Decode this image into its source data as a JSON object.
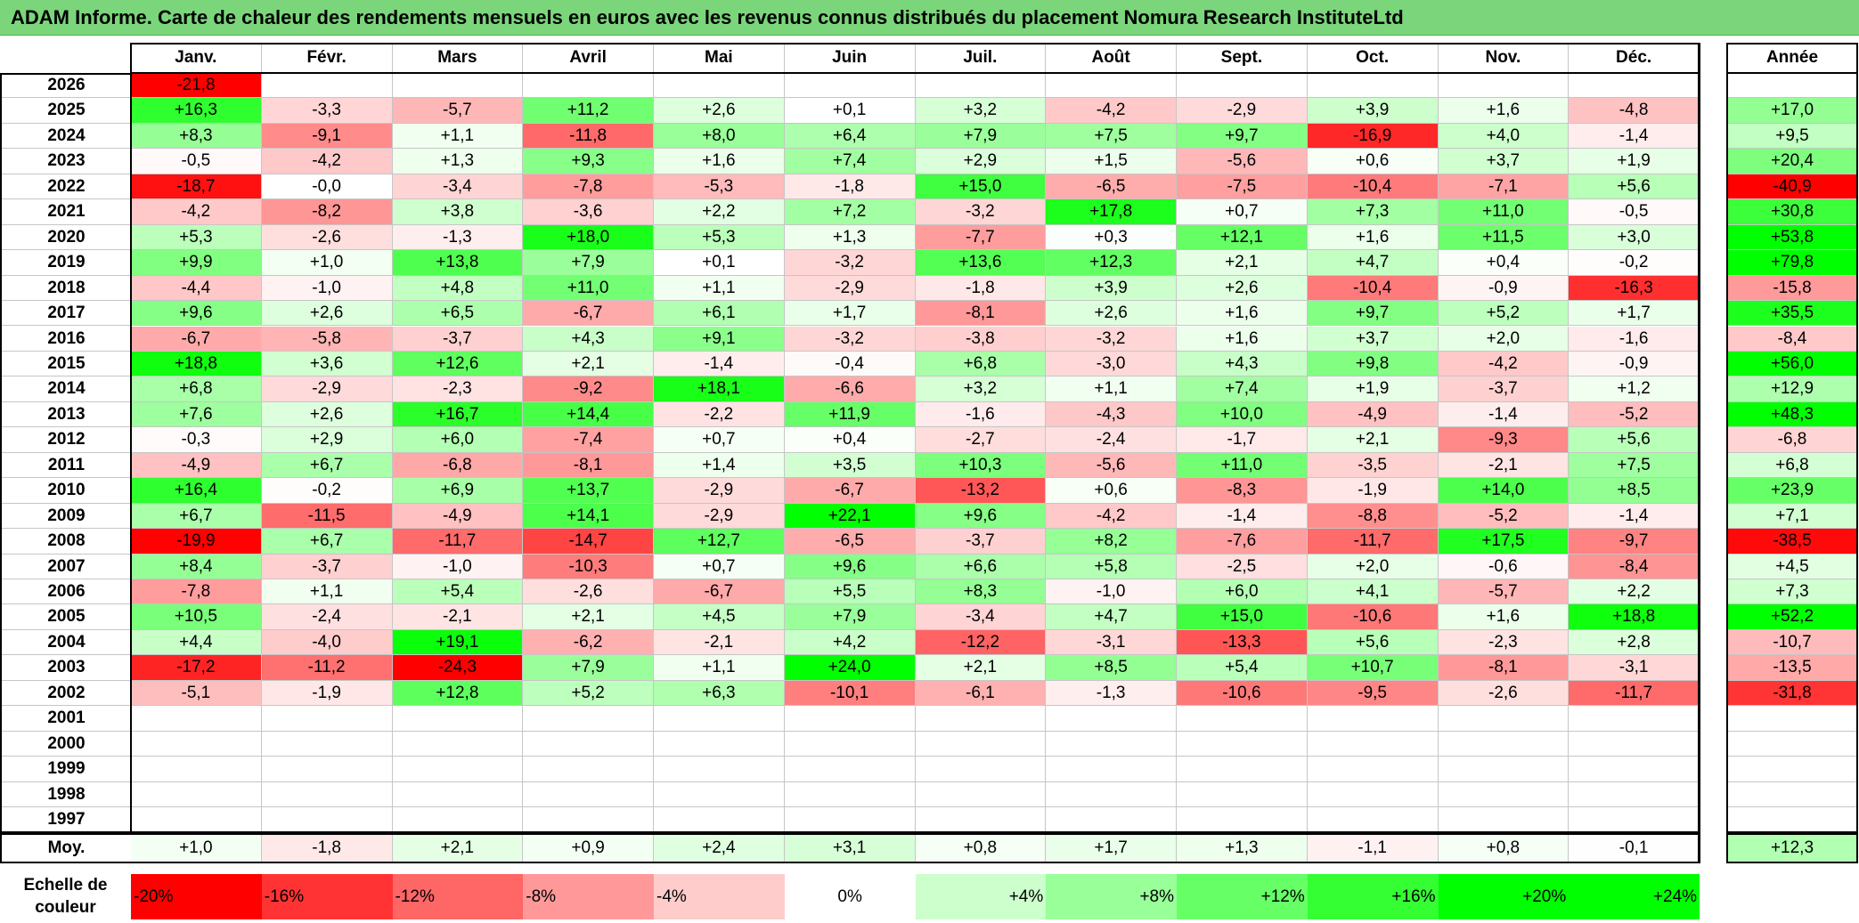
{
  "title": "ADAM Informe. Carte de chaleur des rendements mensuels en euros avec les revenus connus distribués du placement Nomura Research InstituteLtd",
  "chart_data": {
    "type": "heatmap",
    "columns": [
      "Janv.",
      "Févr.",
      "Mars",
      "Avril",
      "Mai",
      "Juin",
      "Juil.",
      "Août",
      "Sept.",
      "Oct.",
      "Nov.",
      "Déc."
    ],
    "year_column": "Année",
    "rows": [
      {
        "year": "2026",
        "values": [
          "-21,8",
          "",
          "",
          "",
          "",
          "",
          "",
          "",
          "",
          "",
          "",
          ""
        ],
        "annual": ""
      },
      {
        "year": "2025",
        "values": [
          "+16,3",
          "-3,3",
          "-5,7",
          "+11,2",
          "+2,6",
          "+0,1",
          "+3,2",
          "-4,2",
          "-2,9",
          "+3,9",
          "+1,6",
          "-4,8"
        ],
        "annual": "+17,0"
      },
      {
        "year": "2024",
        "values": [
          "+8,3",
          "-9,1",
          "+1,1",
          "-11,8",
          "+8,0",
          "+6,4",
          "+7,9",
          "+7,5",
          "+9,7",
          "-16,9",
          "+4,0",
          "-1,4"
        ],
        "annual": "+9,5"
      },
      {
        "year": "2023",
        "values": [
          "-0,5",
          "-4,2",
          "+1,3",
          "+9,3",
          "+1,6",
          "+7,4",
          "+2,9",
          "+1,5",
          "-5,6",
          "+0,6",
          "+3,7",
          "+1,9"
        ],
        "annual": "+20,4"
      },
      {
        "year": "2022",
        "values": [
          "-18,7",
          "-0,0",
          "-3,4",
          "-7,8",
          "-5,3",
          "-1,8",
          "+15,0",
          "-6,5",
          "-7,5",
          "-10,4",
          "-7,1",
          "+5,6"
        ],
        "annual": "-40,9"
      },
      {
        "year": "2021",
        "values": [
          "-4,2",
          "-8,2",
          "+3,8",
          "-3,6",
          "+2,2",
          "+7,2",
          "-3,2",
          "+17,8",
          "+0,7",
          "+7,3",
          "+11,0",
          "-0,5"
        ],
        "annual": "+30,8"
      },
      {
        "year": "2020",
        "values": [
          "+5,3",
          "-2,6",
          "-1,3",
          "+18,0",
          "+5,3",
          "+1,3",
          "-7,7",
          "+0,3",
          "+12,1",
          "+1,6",
          "+11,5",
          "+3,0"
        ],
        "annual": "+53,8"
      },
      {
        "year": "2019",
        "values": [
          "+9,9",
          "+1,0",
          "+13,8",
          "+7,9",
          "+0,1",
          "-3,2",
          "+13,6",
          "+12,3",
          "+2,1",
          "+4,7",
          "+0,4",
          "-0,2"
        ],
        "annual": "+79,8"
      },
      {
        "year": "2018",
        "values": [
          "-4,4",
          "-1,0",
          "+4,8",
          "+11,0",
          "+1,1",
          "-2,9",
          "-1,8",
          "+3,9",
          "+2,6",
          "-10,4",
          "-0,9",
          "-16,3"
        ],
        "annual": "-15,8"
      },
      {
        "year": "2017",
        "values": [
          "+9,6",
          "+2,6",
          "+6,5",
          "-6,7",
          "+6,1",
          "+1,7",
          "-8,1",
          "+2,6",
          "+1,6",
          "+9,7",
          "+5,2",
          "+1,7"
        ],
        "annual": "+35,5"
      },
      {
        "year": "2016",
        "values": [
          "-6,7",
          "-5,8",
          "-3,7",
          "+4,3",
          "+9,1",
          "-3,2",
          "-3,8",
          "-3,2",
          "+1,6",
          "+3,7",
          "+2,0",
          "-1,6"
        ],
        "annual": "-8,4"
      },
      {
        "year": "2015",
        "values": [
          "+18,8",
          "+3,6",
          "+12,6",
          "+2,1",
          "-1,4",
          "-0,4",
          "+6,8",
          "-3,0",
          "+4,3",
          "+9,8",
          "-4,2",
          "-0,9"
        ],
        "annual": "+56,0"
      },
      {
        "year": "2014",
        "values": [
          "+6,8",
          "-2,9",
          "-2,3",
          "-9,2",
          "+18,1",
          "-6,6",
          "+3,2",
          "+1,1",
          "+7,4",
          "+1,9",
          "-3,7",
          "+1,2"
        ],
        "annual": "+12,9"
      },
      {
        "year": "2013",
        "values": [
          "+7,6",
          "+2,6",
          "+16,7",
          "+14,4",
          "-2,2",
          "+11,9",
          "-1,6",
          "-4,3",
          "+10,0",
          "-4,9",
          "-1,4",
          "-5,2"
        ],
        "annual": "+48,3"
      },
      {
        "year": "2012",
        "values": [
          "-0,3",
          "+2,9",
          "+6,0",
          "-7,4",
          "+0,7",
          "+0,4",
          "-2,7",
          "-2,4",
          "-1,7",
          "+2,1",
          "-9,3",
          "+5,6"
        ],
        "annual": "-6,8"
      },
      {
        "year": "2011",
        "values": [
          "-4,9",
          "+6,7",
          "-6,8",
          "-8,1",
          "+1,4",
          "+3,5",
          "+10,3",
          "-5,6",
          "+11,0",
          "-3,5",
          "-2,1",
          "+7,5"
        ],
        "annual": "+6,8"
      },
      {
        "year": "2010",
        "values": [
          "+16,4",
          "-0,2",
          "+6,9",
          "+13,7",
          "-2,9",
          "-6,7",
          "-13,2",
          "+0,6",
          "-8,3",
          "-1,9",
          "+14,0",
          "+8,5"
        ],
        "annual": "+23,9"
      },
      {
        "year": "2009",
        "values": [
          "+6,7",
          "-11,5",
          "-4,9",
          "+14,1",
          "-2,9",
          "+22,1",
          "+9,6",
          "-4,2",
          "-1,4",
          "-8,8",
          "-5,2",
          "-1,4"
        ],
        "annual": "+7,1"
      },
      {
        "year": "2008",
        "values": [
          "-19,9",
          "+6,7",
          "-11,7",
          "-14,7",
          "+12,7",
          "-6,5",
          "-3,7",
          "+8,2",
          "-7,6",
          "-11,7",
          "+17,5",
          "-9,7"
        ],
        "annual": "-38,5"
      },
      {
        "year": "2007",
        "values": [
          "+8,4",
          "-3,7",
          "-1,0",
          "-10,3",
          "+0,7",
          "+9,6",
          "+6,6",
          "+5,8",
          "-2,5",
          "+2,0",
          "-0,6",
          "-8,4"
        ],
        "annual": "+4,5"
      },
      {
        "year": "2006",
        "values": [
          "-7,8",
          "+1,1",
          "+5,4",
          "-2,6",
          "-6,7",
          "+5,5",
          "+8,3",
          "-1,0",
          "+6,0",
          "+4,1",
          "-5,7",
          "+2,2"
        ],
        "annual": "+7,3"
      },
      {
        "year": "2005",
        "values": [
          "+10,5",
          "-2,4",
          "-2,1",
          "+2,1",
          "+4,5",
          "+7,9",
          "-3,4",
          "+4,7",
          "+15,0",
          "-10,6",
          "+1,6",
          "+18,8"
        ],
        "annual": "+52,2"
      },
      {
        "year": "2004",
        "values": [
          "+4,4",
          "-4,0",
          "+19,1",
          "-6,2",
          "-2,1",
          "+4,2",
          "-12,2",
          "-3,1",
          "-13,3",
          "+5,6",
          "-2,3",
          "+2,8"
        ],
        "annual": "-10,7"
      },
      {
        "year": "2003",
        "values": [
          "-17,2",
          "-11,2",
          "-24,3",
          "+7,9",
          "+1,1",
          "+24,0",
          "+2,1",
          "+8,5",
          "+5,4",
          "+10,7",
          "-8,1",
          "-3,1"
        ],
        "annual": "-13,5"
      },
      {
        "year": "2002",
        "values": [
          "-5,1",
          "-1,9",
          "+12,8",
          "+5,2",
          "+6,3",
          "-10,1",
          "-6,1",
          "-1,3",
          "-10,6",
          "-9,5",
          "-2,6",
          "-11,7"
        ],
        "annual": "-31,8"
      },
      {
        "year": "2001",
        "values": [
          "",
          "",
          "",
          "",
          "",
          "",
          "",
          "",
          "",
          "",
          "",
          ""
        ],
        "annual": ""
      },
      {
        "year": "2000",
        "values": [
          "",
          "",
          "",
          "",
          "",
          "",
          "",
          "",
          "",
          "",
          "",
          ""
        ],
        "annual": ""
      },
      {
        "year": "1999",
        "values": [
          "",
          "",
          "",
          "",
          "",
          "",
          "",
          "",
          "",
          "",
          "",
          ""
        ],
        "annual": ""
      },
      {
        "year": "1998",
        "values": [
          "",
          "",
          "",
          "",
          "",
          "",
          "",
          "",
          "",
          "",
          "",
          ""
        ],
        "annual": ""
      },
      {
        "year": "1997",
        "values": [
          "",
          "",
          "",
          "",
          "",
          "",
          "",
          "",
          "",
          "",
          "",
          ""
        ],
        "annual": ""
      }
    ],
    "average": {
      "label": "Moy.",
      "values": [
        "+1,0",
        "-1,8",
        "+2,1",
        "+0,9",
        "+2,4",
        "+3,1",
        "+0,8",
        "+1,7",
        "+1,3",
        "-1,1",
        "+0,8",
        "-0,1"
      ],
      "annual": "+12,3"
    },
    "scale": {
      "label_line1": "Echelle de",
      "label_line2": "couleur",
      "stops": [
        "-20%",
        "-16%",
        "-12%",
        "-8%",
        "-4%",
        "0%",
        "+4%",
        "+8%",
        "+12%",
        "+16%",
        "+20%",
        "+24%"
      ]
    },
    "colors": {
      "neg": "#ff0000",
      "pos": "#00ff00",
      "neutral": "#ffffff",
      "title_bg": "#7bd67b"
    }
  }
}
